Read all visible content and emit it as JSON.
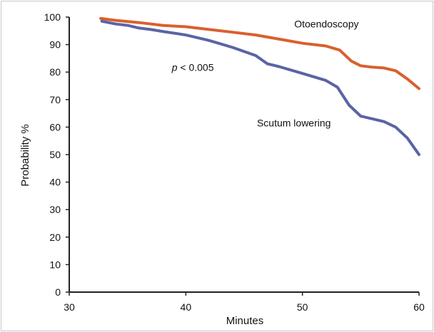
{
  "chart_data": {
    "type": "line",
    "title": "",
    "xlabel": "Minutes",
    "ylabel": "Probability %",
    "xlim": [
      30,
      60
    ],
    "ylim": [
      0,
      100
    ],
    "xticks": [
      "30",
      "40",
      "50",
      "60"
    ],
    "yticks": [
      "0",
      "10",
      "20",
      "30",
      "40",
      "50",
      "60",
      "70",
      "80",
      "90",
      "100"
    ],
    "grid": false,
    "series": [
      {
        "name": "Otoendoscopy",
        "color": "#d9602e",
        "x": [
          32.7,
          34,
          36,
          38,
          40,
          42,
          44,
          46,
          48,
          50,
          52,
          53.2,
          54.2,
          55,
          56,
          57,
          58,
          59,
          60
        ],
        "y": [
          99.5,
          98.8,
          98,
          97,
          96.5,
          95.5,
          94.5,
          93.5,
          92,
          90.5,
          89.5,
          88,
          84,
          82.3,
          81.8,
          81.5,
          80.5,
          77.5,
          74
        ]
      },
      {
        "name": "Scutum lowering",
        "color": "#5a64a4",
        "x": [
          32.8,
          34,
          35,
          36,
          37,
          38,
          40,
          42,
          44,
          46,
          47,
          48,
          50,
          52,
          53,
          54,
          55,
          56,
          57,
          58,
          59,
          60
        ],
        "y": [
          98.5,
          97.5,
          97,
          96,
          95.5,
          94.8,
          93.5,
          91.5,
          89,
          86,
          83,
          82,
          79.5,
          77,
          74.5,
          68,
          64,
          63,
          62,
          60,
          56,
          50
        ]
      }
    ],
    "annotations": [
      {
        "text": "p < 0.005",
        "x": 38.8,
        "y": 81.7
      },
      {
        "text": "Otoendoscopy",
        "x": 49.3,
        "y": 97.5
      },
      {
        "text": "Scutum lowering",
        "x": 46.1,
        "y": 61.5
      }
    ]
  }
}
